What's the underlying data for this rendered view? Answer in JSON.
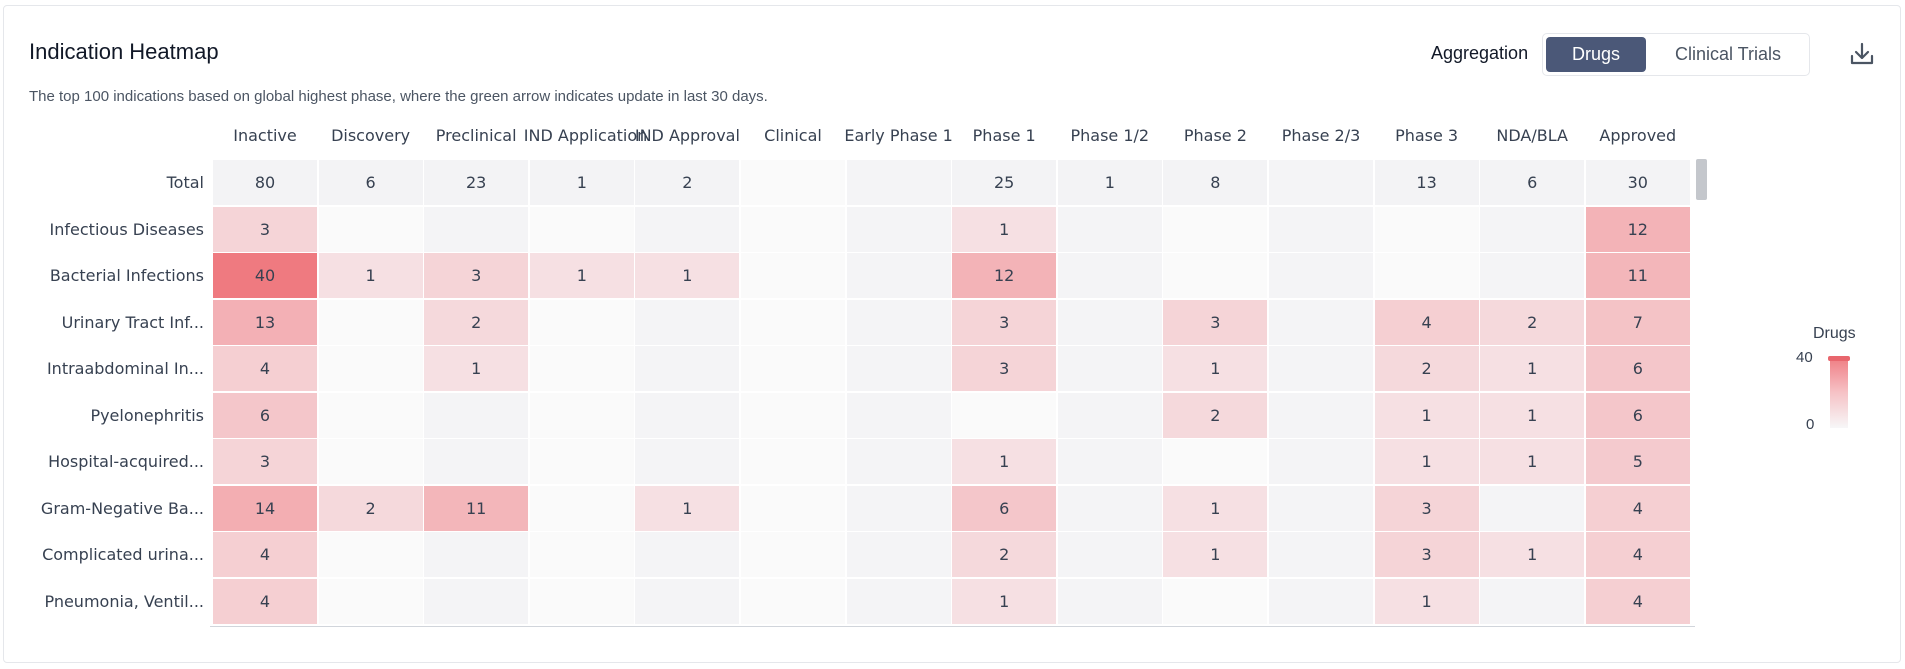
{
  "header": {
    "title": "Indication Heatmap",
    "subtitle": "The top 100 indications based on global highest phase, where the green arrow indicates update in last 30 days.",
    "aggregation_label": "Aggregation",
    "aggregation_options": [
      "Drugs",
      "Clinical Trials"
    ],
    "aggregation_selected": "Drugs",
    "download_icon": "download-icon"
  },
  "chart_data": {
    "type": "heatmap",
    "columns": [
      "Inactive",
      "Discovery",
      "Preclinical",
      "IND Application",
      "IND Approval",
      "Clinical",
      "Early Phase 1",
      "Phase 1",
      "Phase 1/2",
      "Phase 2",
      "Phase 2/3",
      "Phase 3",
      "NDA/BLA",
      "Approved"
    ],
    "rows": [
      {
        "label": "Total",
        "values": [
          80,
          6,
          23,
          1,
          2,
          null,
          null,
          25,
          1,
          8,
          null,
          13,
          6,
          30
        ]
      },
      {
        "label": "Infectious Diseases",
        "values": [
          3,
          null,
          null,
          null,
          null,
          null,
          null,
          1,
          null,
          null,
          null,
          null,
          null,
          12
        ]
      },
      {
        "label": "Bacterial Infections",
        "values": [
          40,
          1,
          3,
          1,
          1,
          null,
          null,
          12,
          null,
          null,
          null,
          null,
          null,
          11
        ]
      },
      {
        "label": "Urinary Tract Inf...",
        "values": [
          13,
          null,
          2,
          null,
          null,
          null,
          null,
          3,
          null,
          3,
          null,
          4,
          2,
          7
        ]
      },
      {
        "label": "Intraabdominal In...",
        "values": [
          4,
          null,
          1,
          null,
          null,
          null,
          null,
          3,
          null,
          1,
          null,
          2,
          1,
          6
        ]
      },
      {
        "label": "Pyelonephritis",
        "values": [
          6,
          null,
          null,
          null,
          null,
          null,
          null,
          null,
          null,
          2,
          null,
          1,
          1,
          6
        ]
      },
      {
        "label": "Hospital-acquired...",
        "values": [
          3,
          null,
          null,
          null,
          null,
          null,
          null,
          1,
          null,
          null,
          null,
          1,
          1,
          5
        ]
      },
      {
        "label": "Gram-Negative Ba...",
        "values": [
          14,
          2,
          11,
          null,
          1,
          null,
          null,
          6,
          null,
          1,
          null,
          3,
          null,
          4
        ]
      },
      {
        "label": "Complicated urina...",
        "values": [
          4,
          null,
          null,
          null,
          null,
          null,
          null,
          2,
          null,
          1,
          null,
          3,
          1,
          4
        ]
      },
      {
        "label": "Pneumonia, Ventil...",
        "values": [
          4,
          null,
          null,
          null,
          null,
          null,
          null,
          1,
          null,
          null,
          null,
          1,
          null,
          4
        ]
      }
    ],
    "legend": {
      "title": "Drugs",
      "max": 40,
      "min": 0,
      "placement": "right"
    },
    "colors": {
      "high": "#ef7a80",
      "low": "#f7f7f8",
      "empty_a": "#f4f4f6",
      "empty_b": "#fafafa"
    }
  }
}
